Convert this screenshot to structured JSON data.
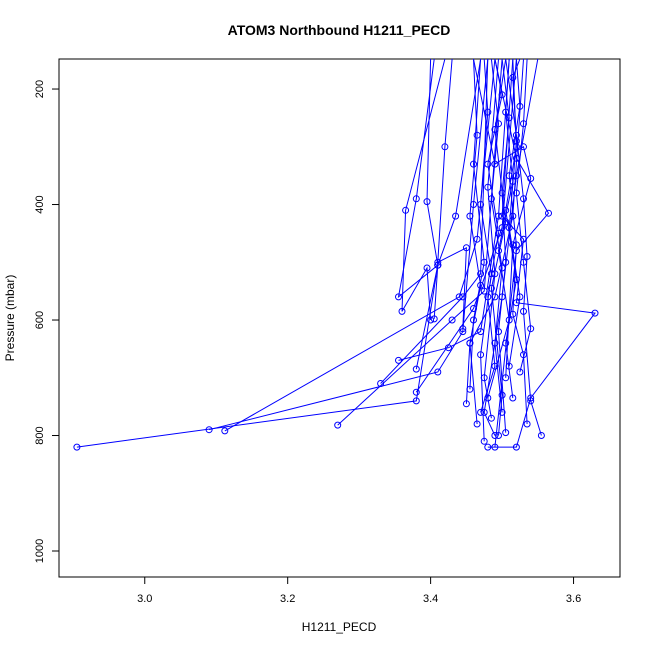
{
  "chart_data": {
    "type": "line",
    "title": "ATOM3 Northbound H1211_PECD",
    "xlabel": "H1211_PECD",
    "ylabel": "Pressure (mbar)",
    "xlim": [
      2.88,
      3.665
    ],
    "ylim": [
      1045,
      148
    ],
    "y_inverted": true,
    "x_ticks": [
      3.0,
      3.2,
      3.4,
      3.6
    ],
    "x_tick_labels": [
      "3.0",
      "3.2",
      "3.4",
      "3.6"
    ],
    "y_ticks": [
      200,
      400,
      600,
      800,
      1000
    ],
    "y_tick_labels": [
      "200",
      "400",
      "600",
      "800",
      "1000"
    ],
    "grid": false,
    "line_color": "#0000ff",
    "series": [
      {
        "points": [
          [
            3.405,
            148
          ],
          [
            3.38,
            390
          ],
          [
            3.355,
            560
          ],
          [
            3.41,
            505
          ],
          [
            3.38,
            685
          ]
        ]
      },
      {
        "points": [
          [
            3.42,
            148
          ],
          [
            3.365,
            410
          ],
          [
            3.36,
            585
          ],
          [
            3.395,
            510
          ],
          [
            3.4,
            600
          ]
        ]
      },
      {
        "points": [
          [
            3.43,
            148
          ],
          [
            3.42,
            300
          ],
          [
            3.41,
            500
          ],
          [
            3.45,
            475
          ],
          [
            3.445,
            615
          ]
        ]
      },
      {
        "points": [
          [
            3.4,
            148
          ],
          [
            3.395,
            395
          ],
          [
            3.41,
            505
          ],
          [
            3.405,
            598
          ]
        ]
      },
      {
        "points": [
          [
            3.47,
            148
          ],
          [
            3.435,
            420
          ],
          [
            3.41,
            505
          ],
          [
            3.38,
            740
          ],
          [
            2.905,
            820
          ]
        ]
      },
      {
        "points": [
          [
            3.48,
            148
          ],
          [
            3.46,
            400
          ],
          [
            3.445,
            620
          ],
          [
            3.41,
            690
          ],
          [
            3.09,
            790
          ]
        ]
      },
      {
        "points": [
          [
            3.49,
            148
          ],
          [
            3.465,
            460
          ],
          [
            3.44,
            560
          ],
          [
            3.112,
            792
          ]
        ]
      },
      {
        "points": [
          [
            3.5,
            148
          ],
          [
            3.475,
            550
          ],
          [
            3.43,
            600
          ],
          [
            3.27,
            782
          ]
        ]
      },
      {
        "points": [
          [
            3.51,
            148
          ],
          [
            3.495,
            420
          ],
          [
            3.47,
            620
          ],
          [
            3.425,
            648
          ],
          [
            3.355,
            670
          ]
        ]
      },
      {
        "points": [
          [
            3.52,
            148
          ],
          [
            3.5,
            440
          ],
          [
            3.46,
            580
          ],
          [
            3.38,
            725
          ]
        ]
      },
      {
        "points": [
          [
            3.48,
            148
          ],
          [
            3.47,
            520
          ],
          [
            3.445,
            560
          ],
          [
            3.33,
            710
          ]
        ]
      },
      {
        "points": [
          [
            3.53,
            148
          ],
          [
            3.515,
            420
          ],
          [
            3.49,
            560
          ],
          [
            3.455,
            640
          ],
          [
            3.45,
            745
          ]
        ]
      },
      {
        "points": [
          [
            3.55,
            148
          ],
          [
            3.52,
            350
          ],
          [
            3.5,
            560
          ],
          [
            3.475,
            760
          ],
          [
            3.49,
            800
          ]
        ]
      },
      {
        "points": [
          [
            3.49,
            148
          ],
          [
            3.52,
            320
          ],
          [
            3.565,
            415
          ],
          [
            3.52,
            480
          ],
          [
            3.49,
            820
          ]
        ]
      },
      {
        "points": [
          [
            3.46,
            148
          ],
          [
            3.49,
            330
          ],
          [
            3.53,
            300
          ],
          [
            3.54,
            355
          ],
          [
            3.515,
            470
          ],
          [
            3.505,
            700
          ]
        ]
      },
      {
        "points": [
          [
            3.505,
            148
          ],
          [
            3.52,
            280
          ],
          [
            3.53,
            390
          ],
          [
            3.535,
            490
          ],
          [
            3.53,
            585
          ],
          [
            3.54,
            740
          ],
          [
            3.555,
            800
          ]
        ]
      },
      {
        "points": [
          [
            3.515,
            148
          ],
          [
            3.5,
            420
          ],
          [
            3.53,
            460
          ],
          [
            3.52,
            570
          ],
          [
            3.63,
            588
          ],
          [
            3.54,
            735
          ],
          [
            3.52,
            820
          ],
          [
            3.48,
            820
          ]
        ]
      },
      {
        "points": [
          [
            3.495,
            148
          ],
          [
            3.48,
            370
          ],
          [
            3.49,
            520
          ],
          [
            3.475,
            700
          ],
          [
            3.485,
            770
          ]
        ]
      },
      {
        "points": [
          [
            3.47,
            148
          ],
          [
            3.46,
            330
          ],
          [
            3.475,
            500
          ],
          [
            3.46,
            600
          ],
          [
            3.455,
            720
          ]
        ]
      },
      {
        "points": [
          [
            3.485,
            148
          ],
          [
            3.495,
            260
          ],
          [
            3.485,
            390
          ],
          [
            3.5,
            510
          ],
          [
            3.49,
            640
          ],
          [
            3.5,
            760
          ]
        ]
      },
      {
        "points": [
          [
            3.5,
            148
          ],
          [
            3.51,
            250
          ],
          [
            3.5,
            380
          ],
          [
            3.505,
            500
          ],
          [
            3.495,
            620
          ],
          [
            3.505,
            795
          ]
        ]
      },
      {
        "points": [
          [
            3.51,
            148
          ],
          [
            3.505,
            240
          ],
          [
            3.515,
            360
          ],
          [
            3.495,
            480
          ],
          [
            3.51,
            600
          ],
          [
            3.48,
            735
          ]
        ]
      },
      {
        "points": [
          [
            3.52,
            148
          ],
          [
            3.525,
            230
          ],
          [
            3.51,
            350
          ],
          [
            3.52,
            470
          ],
          [
            3.515,
            590
          ],
          [
            3.53,
            660
          ],
          [
            3.535,
            780
          ]
        ]
      },
      {
        "points": [
          [
            3.475,
            148
          ],
          [
            3.48,
            240
          ],
          [
            3.47,
            400
          ],
          [
            3.485,
            520
          ],
          [
            3.47,
            660
          ],
          [
            3.475,
            810
          ]
        ]
      },
      {
        "points": [
          [
            3.49,
            148
          ],
          [
            3.5,
            210
          ],
          [
            3.48,
            330
          ],
          [
            3.495,
            450
          ],
          [
            3.48,
            560
          ],
          [
            3.49,
            680
          ],
          [
            3.47,
            760
          ]
        ]
      },
      {
        "points": [
          [
            3.535,
            148
          ],
          [
            3.53,
            260
          ],
          [
            3.52,
            380
          ],
          [
            3.53,
            500
          ],
          [
            3.54,
            615
          ],
          [
            3.525,
            690
          ]
        ]
      },
      {
        "points": [
          [
            3.505,
            148
          ],
          [
            3.49,
            270
          ],
          [
            3.505,
            430
          ],
          [
            3.485,
            545
          ],
          [
            3.5,
            730
          ],
          [
            3.495,
            800
          ]
        ]
      },
      {
        "points": [
          [
            3.46,
            148
          ],
          [
            3.465,
            280
          ],
          [
            3.455,
            420
          ],
          [
            3.47,
            540
          ],
          [
            3.455,
            640
          ],
          [
            3.465,
            780
          ]
        ]
      },
      {
        "points": [
          [
            3.515,
            148
          ],
          [
            3.52,
            300
          ],
          [
            3.505,
            410
          ],
          [
            3.52,
            530
          ],
          [
            3.505,
            640
          ],
          [
            3.515,
            735
          ]
        ]
      },
      {
        "points": [
          [
            3.525,
            148
          ],
          [
            3.515,
            180
          ],
          [
            3.52,
            290
          ],
          [
            3.51,
            440
          ],
          [
            3.525,
            560
          ],
          [
            3.51,
            680
          ]
        ]
      }
    ]
  }
}
